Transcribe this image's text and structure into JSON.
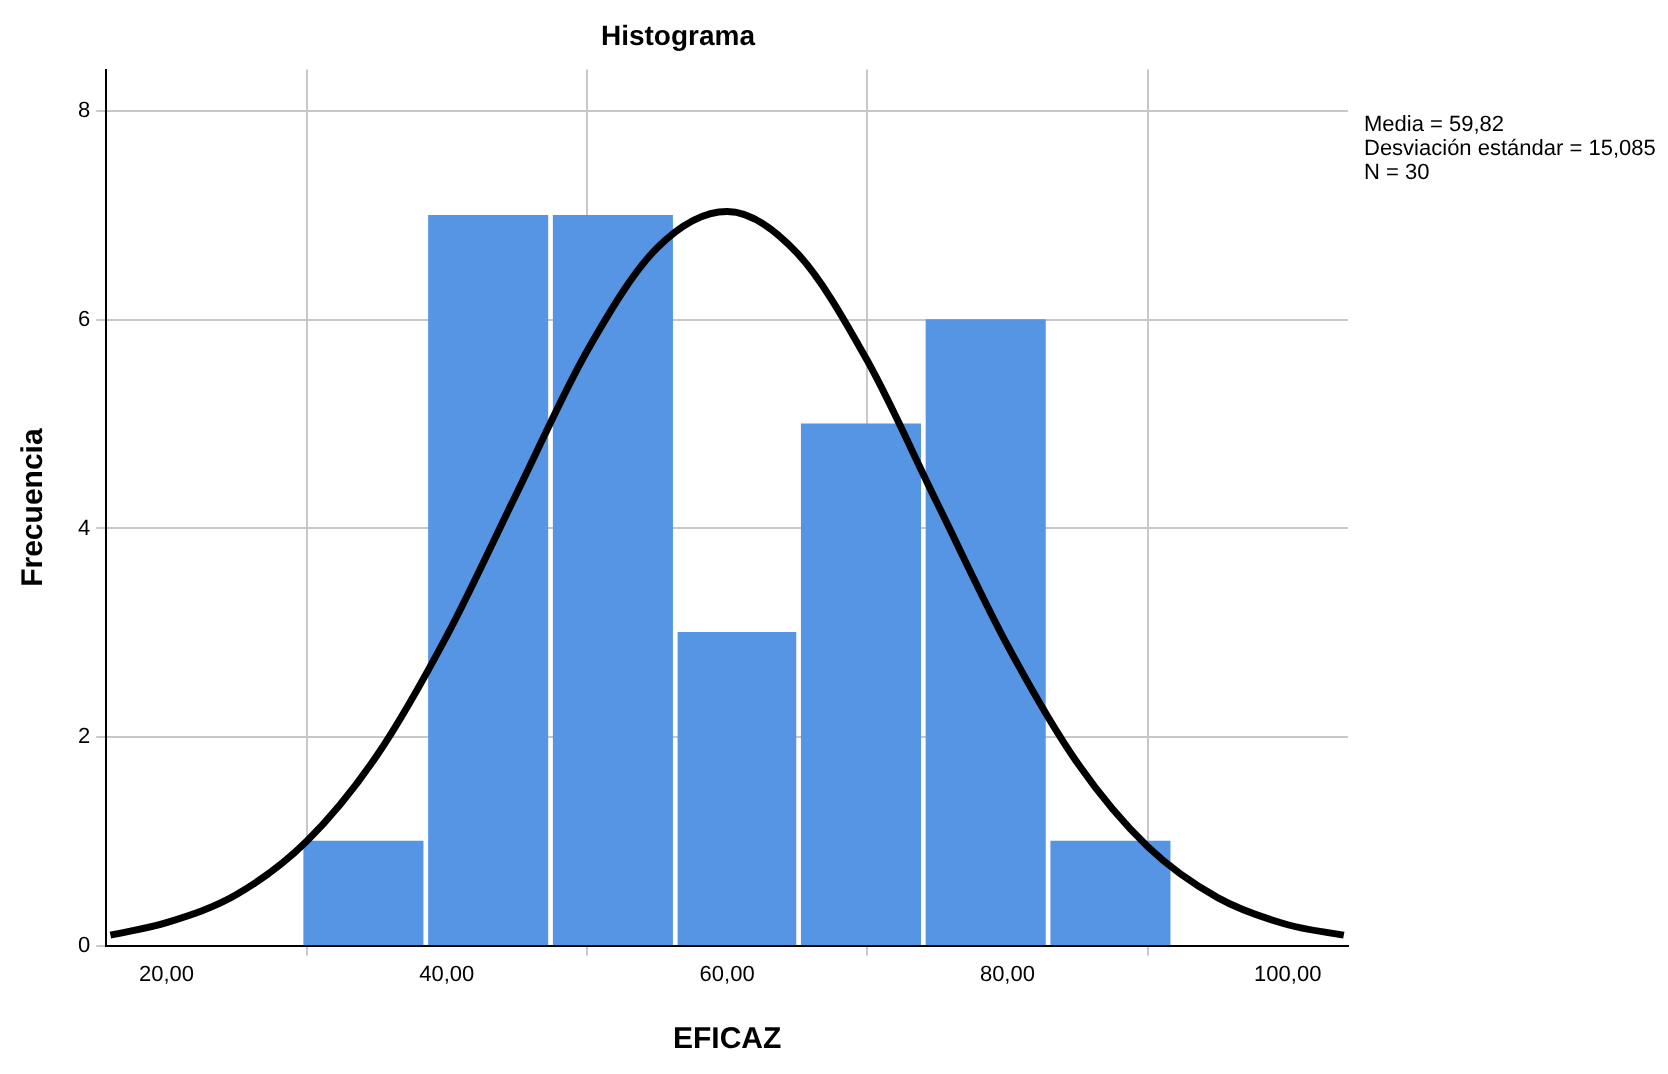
{
  "chart_data": {
    "type": "histogram",
    "title": "Histograma",
    "xlabel": "EFICAZ",
    "ylabel": "Frecuencia",
    "bins": [
      29.6,
      38.5,
      47.4,
      56.3,
      65.1,
      74.0,
      82.9,
      91.8
    ],
    "values": [
      1,
      7,
      7,
      3,
      5,
      6,
      1
    ],
    "color": "#5694e4",
    "series": [
      {
        "type": "line",
        "color": "#000000",
        "x": [
          16,
          20,
          25,
          30,
          35,
          40,
          45,
          50,
          55,
          60,
          65,
          70,
          75,
          80,
          85,
          90,
          95,
          100,
          104
        ],
        "values": [
          0.1,
          0.22,
          0.49,
          1.0,
          1.82,
          2.97,
          4.34,
          5.7,
          6.69,
          7.04,
          6.64,
          5.61,
          4.24,
          2.88,
          1.75,
          0.95,
          0.46,
          0.2,
          0.1
        ]
      }
    ],
    "xlim": [
      15.7,
      104.3
    ],
    "ylim": [
      0,
      8.4
    ],
    "xticks": [
      {
        "value": 20,
        "label": "20,00"
      },
      {
        "value": 40,
        "label": "40,00"
      },
      {
        "value": 60,
        "label": "60,00"
      },
      {
        "value": 80,
        "label": "80,00"
      },
      {
        "value": 100,
        "label": "100,00"
      }
    ],
    "yticks": [
      0,
      2,
      4,
      6,
      8
    ],
    "grid": true,
    "annotations": [
      "Media = 59,82",
      "Desviación estándar = 15,085",
      "N = 30"
    ]
  }
}
